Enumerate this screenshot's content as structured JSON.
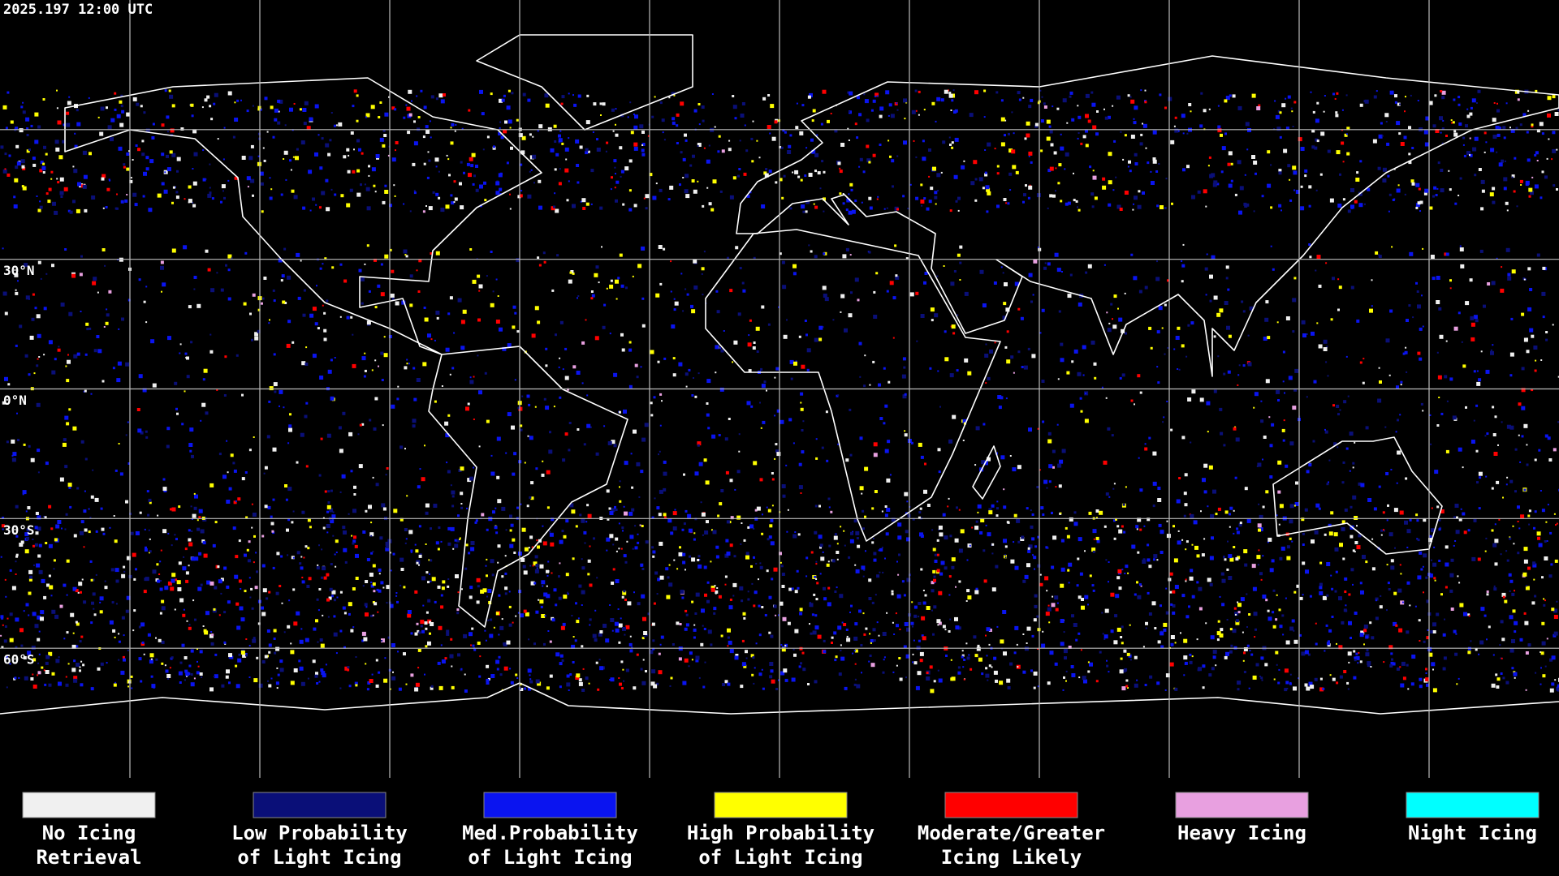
{
  "header": {
    "timestamp": "2025.197 12:00 UTC"
  },
  "map": {
    "latitude_labels": [
      "30°N",
      "0°N",
      "30°S",
      "60°S"
    ]
  },
  "legend": {
    "items": [
      {
        "label_lines": [
          "No Icing",
          "Retrieval"
        ],
        "color": "#f0f0f0"
      },
      {
        "label_lines": [
          "Low Probability",
          "of Light Icing"
        ],
        "color": "#0a0f78"
      },
      {
        "label_lines": [
          "Med.Probability",
          "of Light Icing"
        ],
        "color": "#0a14f0"
      },
      {
        "label_lines": [
          "High Probability",
          "of Light Icing"
        ],
        "color": "#ffff00"
      },
      {
        "label_lines": [
          "Moderate/Greater",
          "Icing Likely"
        ],
        "color": "#ff0000"
      },
      {
        "label_lines": [
          "Heavy Icing"
        ],
        "color": "#e8a0e0"
      },
      {
        "label_lines": [
          "Night Icing"
        ],
        "color": "#00ffff"
      }
    ]
  }
}
